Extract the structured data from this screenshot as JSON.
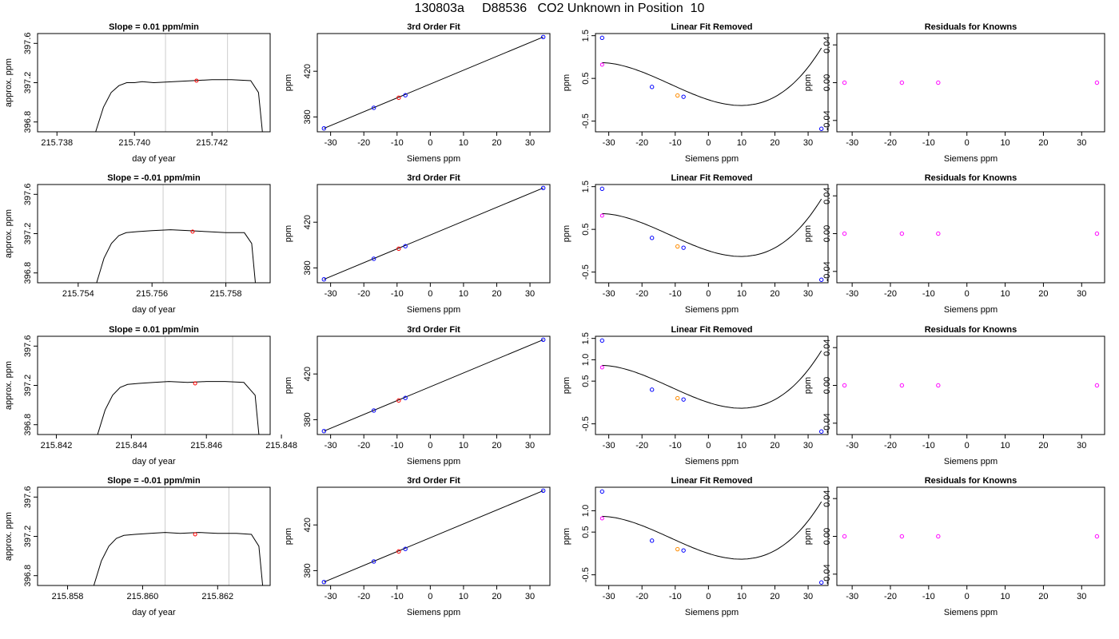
{
  "page_title": "130803a     D88536   CO2 Unknown in Position  10",
  "colors": {
    "trace": "#000000",
    "marker_time": "#cccccc",
    "known": "#0000ff",
    "unknown": "#ff0000",
    "first_point": "#ff00ff",
    "unknown_orange": "#ff8c00"
  },
  "chart_data": [
    {
      "type": "line",
      "title": "Slope =  0.01  ppm/min",
      "xlabel": "day of year",
      "ylabel": "approx. ppm",
      "xlim": [
        215.7375,
        215.7435
      ],
      "ylim": [
        396.7,
        397.7
      ],
      "xticks": [
        "215.738",
        "215.740",
        "215.742"
      ],
      "xtick_values": [
        215.738,
        215.74,
        215.742
      ],
      "yticks": [
        "396.8",
        "397.2",
        "397.6"
      ],
      "ytick_values": [
        396.8,
        397.2,
        397.6
      ],
      "series": [
        {
          "x": [
            215.739,
            215.7392,
            215.7394,
            215.7396,
            215.7398,
            215.74,
            215.7402,
            215.7405,
            215.741,
            215.7415,
            215.742,
            215.7425,
            215.743,
            215.7432,
            215.7433
          ],
          "y": [
            396.7,
            396.95,
            397.1,
            397.17,
            397.2,
            397.2,
            397.21,
            397.2,
            397.21,
            397.22,
            397.23,
            397.23,
            397.22,
            397.1,
            396.7
          ]
        }
      ],
      "vlines": [
        215.7408,
        215.7424
      ],
      "points": [
        {
          "x": 215.7416,
          "y": 397.22
        }
      ]
    },
    {
      "type": "scatter",
      "title": "3rd Order Fit",
      "xlabel": "Siemens ppm",
      "ylabel": "ppm",
      "xlim": [
        -34,
        36
      ],
      "ylim": [
        367,
        453
      ],
      "xticks": [
        "-30",
        "-20",
        "-10",
        "0",
        "10",
        "20",
        "30"
      ],
      "xtick_values": [
        -30,
        -20,
        -10,
        0,
        10,
        20,
        30
      ],
      "yticks": [
        "380",
        "420"
      ],
      "ytick_values": [
        380,
        420
      ],
      "fit_line": {
        "x": [
          -32,
          34
        ],
        "y": [
          370,
          450
        ]
      },
      "knowns": [
        {
          "x": -32,
          "y": 370
        },
        {
          "x": -17,
          "y": 388
        },
        {
          "x": -7.5,
          "y": 399
        },
        {
          "x": 34,
          "y": 450
        }
      ],
      "unknowns": [
        {
          "x": -9.5,
          "y": 396.8
        }
      ]
    },
    {
      "type": "scatter",
      "title": "Linear Fit Removed",
      "xlabel": "Siemens ppm",
      "ylabel": "ppm",
      "xlim": [
        -34,
        36
      ],
      "ylim": [
        -0.75,
        1.55
      ],
      "xticks": [
        "-30",
        "-20",
        "-10",
        "0",
        "10",
        "20",
        "30"
      ],
      "xtick_values": [
        -30,
        -20,
        -10,
        0,
        10,
        20,
        30
      ],
      "yticks": [
        "-0.5",
        "0.5",
        "1.5"
      ],
      "ytick_values": [
        -0.5,
        0.5,
        1.5
      ],
      "curve": {
        "coef": [
          0.0,
          -0.025,
          0.0009,
          2.6e-05
        ]
      },
      "knowns": [
        {
          "x": -32,
          "y": 1.45
        },
        {
          "x": -17,
          "y": 0.3
        },
        {
          "x": -7.5,
          "y": 0.07
        },
        {
          "x": 34,
          "y": -0.68
        }
      ],
      "first_point": {
        "x": -32,
        "y": 0.82
      },
      "unknowns": [
        {
          "x": -9.3,
          "y": 0.1
        }
      ]
    },
    {
      "type": "scatter",
      "title": "Residuals for Knowns",
      "xlabel": "Siemens ppm",
      "ylabel": "ppm",
      "xlim": [
        -34,
        36
      ],
      "ylim": [
        -0.052,
        0.052
      ],
      "xticks": [
        "-30",
        "-20",
        "-10",
        "0",
        "10",
        "20",
        "30"
      ],
      "xtick_values": [
        -30,
        -20,
        -10,
        0,
        10,
        20,
        30
      ],
      "yticks": [
        "-0.04",
        "0.00",
        "0.04"
      ],
      "ytick_values": [
        -0.04,
        0.0,
        0.04
      ],
      "knowns": [
        {
          "x": -32,
          "y": 0.0
        },
        {
          "x": -17,
          "y": 0.0
        },
        {
          "x": -7.5,
          "y": 0.0
        },
        {
          "x": 34,
          "y": 0.0
        }
      ]
    },
    {
      "type": "line",
      "title": "Slope =  -0.01  ppm/min",
      "xlabel": "day of year",
      "ylabel": "approx. ppm",
      "xlim": [
        215.7529,
        215.7592
      ],
      "ylim": [
        396.7,
        397.7
      ],
      "xticks": [
        "215.754",
        "215.756",
        "215.758"
      ],
      "xtick_values": [
        215.754,
        215.756,
        215.758
      ],
      "yticks": [
        "396.8",
        "397.2",
        "397.6"
      ],
      "ytick_values": [
        396.8,
        397.2,
        397.6
      ],
      "series": [
        {
          "x": [
            215.7545,
            215.7547,
            215.7549,
            215.7551,
            215.7553,
            215.7556,
            215.756,
            215.7565,
            215.757,
            215.7575,
            215.758,
            215.7585,
            215.7587,
            215.7588
          ],
          "y": [
            396.7,
            396.95,
            397.1,
            397.18,
            397.21,
            397.22,
            397.23,
            397.24,
            397.23,
            397.22,
            397.21,
            397.21,
            397.1,
            396.7
          ]
        }
      ],
      "vlines": [
        215.7563,
        215.758
      ],
      "points": [
        {
          "x": 215.7571,
          "y": 397.22
        }
      ]
    },
    {
      "type": "scatter",
      "title": "3rd Order Fit",
      "xlabel": "Siemens ppm",
      "ylabel": "ppm",
      "xlim": [
        -34,
        36
      ],
      "ylim": [
        367,
        453
      ],
      "xticks": [
        "-30",
        "-20",
        "-10",
        "0",
        "10",
        "20",
        "30"
      ],
      "xtick_values": [
        -30,
        -20,
        -10,
        0,
        10,
        20,
        30
      ],
      "yticks": [
        "380",
        "420"
      ],
      "ytick_values": [
        380,
        420
      ],
      "fit_line": {
        "x": [
          -32,
          34
        ],
        "y": [
          370,
          450
        ]
      },
      "knowns": [
        {
          "x": -32,
          "y": 370
        },
        {
          "x": -17,
          "y": 388
        },
        {
          "x": -7.5,
          "y": 399
        },
        {
          "x": 34,
          "y": 450
        }
      ],
      "unknowns": [
        {
          "x": -9.5,
          "y": 396.8
        }
      ]
    },
    {
      "type": "scatter",
      "title": "Linear Fit Removed",
      "xlabel": "Siemens ppm",
      "ylabel": "ppm",
      "xlim": [
        -34,
        36
      ],
      "ylim": [
        -0.75,
        1.55
      ],
      "xticks": [
        "-30",
        "-20",
        "-10",
        "0",
        "10",
        "20",
        "30"
      ],
      "xtick_values": [
        -30,
        -20,
        -10,
        0,
        10,
        20,
        30
      ],
      "yticks": [
        "-0.5",
        "0.5",
        "1.5"
      ],
      "ytick_values": [
        -0.5,
        0.5,
        1.5
      ],
      "curve": {
        "coef": [
          0.0,
          -0.025,
          0.0009,
          2.6e-05
        ]
      },
      "knowns": [
        {
          "x": -32,
          "y": 1.45
        },
        {
          "x": -17,
          "y": 0.3
        },
        {
          "x": -7.5,
          "y": 0.07
        },
        {
          "x": 34,
          "y": -0.68
        }
      ],
      "first_point": {
        "x": -32,
        "y": 0.82
      },
      "unknowns": [
        {
          "x": -9.3,
          "y": 0.1
        }
      ]
    },
    {
      "type": "scatter",
      "title": "Residuals for Knowns",
      "xlabel": "Siemens ppm",
      "ylabel": "ppm",
      "xlim": [
        -34,
        36
      ],
      "ylim": [
        -0.052,
        0.052
      ],
      "xticks": [
        "-30",
        "-20",
        "-10",
        "0",
        "10",
        "20",
        "30"
      ],
      "xtick_values": [
        -30,
        -20,
        -10,
        0,
        10,
        20,
        30
      ],
      "yticks": [
        "-0.04",
        "0.00",
        "0.04"
      ],
      "ytick_values": [
        -0.04,
        0.0,
        0.04
      ],
      "knowns": [
        {
          "x": -32,
          "y": 0.0
        },
        {
          "x": -17,
          "y": 0.0
        },
        {
          "x": -7.5,
          "y": 0.0
        },
        {
          "x": 34,
          "y": 0.0
        }
      ]
    },
    {
      "type": "line",
      "title": "Slope =  0.01  ppm/min",
      "xlabel": "day of year",
      "ylabel": "approx. ppm",
      "xlim": [
        215.8415,
        215.8477
      ],
      "ylim": [
        396.7,
        397.7
      ],
      "xticks": [
        "215.842",
        "215.844",
        "215.846",
        "215.848"
      ],
      "xtick_values": [
        215.842,
        215.844,
        215.846,
        215.848
      ],
      "yticks": [
        "396.8",
        "397.2",
        "397.6"
      ],
      "ytick_values": [
        396.8,
        397.2,
        397.6
      ],
      "series": [
        {
          "x": [
            215.8431,
            215.8433,
            215.8435,
            215.8437,
            215.8439,
            215.8442,
            215.8446,
            215.845,
            215.8455,
            215.846,
            215.8465,
            215.847,
            215.8473,
            215.8474
          ],
          "y": [
            396.7,
            396.95,
            397.1,
            397.18,
            397.21,
            397.22,
            397.23,
            397.24,
            397.23,
            397.24,
            397.24,
            397.23,
            397.1,
            396.7
          ]
        }
      ],
      "vlines": [
        215.8449,
        215.8467
      ],
      "points": [
        {
          "x": 215.8457,
          "y": 397.22
        }
      ]
    },
    {
      "type": "scatter",
      "title": "3rd Order Fit",
      "xlabel": "Siemens ppm",
      "ylabel": "ppm",
      "xlim": [
        -34,
        36
      ],
      "ylim": [
        367,
        453
      ],
      "xticks": [
        "-30",
        "-20",
        "-10",
        "0",
        "10",
        "20",
        "30"
      ],
      "xtick_values": [
        -30,
        -20,
        -10,
        0,
        10,
        20,
        30
      ],
      "yticks": [
        "380",
        "420"
      ],
      "ytick_values": [
        380,
        420
      ],
      "fit_line": {
        "x": [
          -32,
          34
        ],
        "y": [
          370,
          450
        ]
      },
      "knowns": [
        {
          "x": -32,
          "y": 370
        },
        {
          "x": -17,
          "y": 388
        },
        {
          "x": -7.5,
          "y": 399
        },
        {
          "x": 34,
          "y": 450
        }
      ],
      "unknowns": [
        {
          "x": -9.5,
          "y": 396.8
        }
      ]
    },
    {
      "type": "scatter",
      "title": "Linear Fit Removed",
      "xlabel": "Siemens ppm",
      "ylabel": "ppm",
      "xlim": [
        -34,
        36
      ],
      "ylim": [
        -0.75,
        1.55
      ],
      "xticks": [
        "-30",
        "-20",
        "-10",
        "0",
        "10",
        "20",
        "30"
      ],
      "xtick_values": [
        -30,
        -20,
        -10,
        0,
        10,
        20,
        30
      ],
      "yticks": [
        "-0.5",
        "0.5",
        "1.0",
        "1.5"
      ],
      "ytick_values": [
        -0.5,
        0.5,
        1.0,
        1.5
      ],
      "curve": {
        "coef": [
          0.0,
          -0.025,
          0.0009,
          2.6e-05
        ]
      },
      "knowns": [
        {
          "x": -32,
          "y": 1.45
        },
        {
          "x": -17,
          "y": 0.3
        },
        {
          "x": -7.5,
          "y": 0.07
        },
        {
          "x": 34,
          "y": -0.68
        }
      ],
      "first_point": {
        "x": -32,
        "y": 0.82
      },
      "unknowns": [
        {
          "x": -9.3,
          "y": 0.1
        }
      ]
    },
    {
      "type": "scatter",
      "title": "Residuals for Knowns",
      "xlabel": "Siemens ppm",
      "ylabel": "ppm",
      "xlim": [
        -34,
        36
      ],
      "ylim": [
        -0.052,
        0.052
      ],
      "xticks": [
        "-30",
        "-20",
        "-10",
        "0",
        "10",
        "20",
        "30"
      ],
      "xtick_values": [
        -30,
        -20,
        -10,
        0,
        10,
        20,
        30
      ],
      "yticks": [
        "-0.04",
        "0.00",
        "0.04"
      ],
      "ytick_values": [
        -0.04,
        0.0,
        0.04
      ],
      "knowns": [
        {
          "x": -32,
          "y": 0.0
        },
        {
          "x": -17,
          "y": 0.0
        },
        {
          "x": -7.5,
          "y": 0.0
        },
        {
          "x": 34,
          "y": 0.0
        }
      ]
    },
    {
      "type": "line",
      "title": "Slope =  -0.01  ppm/min",
      "xlabel": "day of year",
      "ylabel": "approx. ppm",
      "xlim": [
        215.8572,
        215.8634
      ],
      "ylim": [
        396.7,
        397.7
      ],
      "xticks": [
        "215.858",
        "215.860",
        "215.862"
      ],
      "xtick_values": [
        215.858,
        215.86,
        215.862
      ],
      "yticks": [
        "396.8",
        "397.2",
        "397.6"
      ],
      "ytick_values": [
        396.8,
        397.2,
        397.6
      ],
      "series": [
        {
          "x": [
            215.8587,
            215.8589,
            215.8591,
            215.8593,
            215.8595,
            215.8598,
            215.8602,
            215.8606,
            215.861,
            215.8615,
            215.862,
            215.8625,
            215.8629,
            215.8631,
            215.8632
          ],
          "y": [
            396.7,
            396.95,
            397.1,
            397.18,
            397.21,
            397.22,
            397.23,
            397.24,
            397.23,
            397.24,
            397.23,
            397.23,
            397.22,
            397.1,
            396.7
          ]
        }
      ],
      "vlines": [
        215.8606,
        215.8623
      ],
      "points": [
        {
          "x": 215.8614,
          "y": 397.22
        }
      ]
    },
    {
      "type": "scatter",
      "title": "3rd Order Fit",
      "xlabel": "Siemens ppm",
      "ylabel": "ppm",
      "xlim": [
        -34,
        36
      ],
      "ylim": [
        367,
        453
      ],
      "xticks": [
        "-30",
        "-20",
        "-10",
        "0",
        "10",
        "20",
        "30"
      ],
      "xtick_values": [
        -30,
        -20,
        -10,
        0,
        10,
        20,
        30
      ],
      "yticks": [
        "380",
        "420"
      ],
      "ytick_values": [
        380,
        420
      ],
      "fit_line": {
        "x": [
          -32,
          34
        ],
        "y": [
          370,
          450
        ]
      },
      "knowns": [
        {
          "x": -32,
          "y": 370
        },
        {
          "x": -17,
          "y": 388
        },
        {
          "x": -7.5,
          "y": 399
        },
        {
          "x": 34,
          "y": 450
        }
      ],
      "unknowns": [
        {
          "x": -9.5,
          "y": 396.8
        }
      ]
    },
    {
      "type": "scatter",
      "title": "Linear Fit Removed",
      "xlabel": "Siemens ppm",
      "ylabel": "ppm",
      "xlim": [
        -34,
        36
      ],
      "ylim": [
        -0.75,
        1.55
      ],
      "xticks": [
        "-30",
        "-20",
        "-10",
        "0",
        "10",
        "20",
        "30"
      ],
      "xtick_values": [
        -30,
        -20,
        -10,
        0,
        10,
        20,
        30
      ],
      "yticks": [
        "-0.5",
        "0.5",
        "1.0"
      ],
      "ytick_values": [
        -0.5,
        0.5,
        1.0
      ],
      "curve": {
        "coef": [
          0.0,
          -0.025,
          0.0009,
          2.6e-05
        ]
      },
      "knowns": [
        {
          "x": -32,
          "y": 1.45
        },
        {
          "x": -17,
          "y": 0.3
        },
        {
          "x": -7.5,
          "y": 0.07
        },
        {
          "x": 34,
          "y": -0.68
        }
      ],
      "first_point": {
        "x": -32,
        "y": 0.82
      },
      "unknowns": [
        {
          "x": -9.3,
          "y": 0.1
        }
      ]
    },
    {
      "type": "scatter",
      "title": "Residuals for Knowns",
      "xlabel": "Siemens ppm",
      "ylabel": "ppm",
      "xlim": [
        -34,
        36
      ],
      "ylim": [
        -0.052,
        0.052
      ],
      "xticks": [
        "-30",
        "-20",
        "-10",
        "0",
        "10",
        "20",
        "30"
      ],
      "xtick_values": [
        -30,
        -20,
        -10,
        0,
        10,
        20,
        30
      ],
      "yticks": [
        "-0.04",
        "0.00",
        "0.04"
      ],
      "ytick_values": [
        -0.04,
        0.0,
        0.04
      ],
      "knowns": [
        {
          "x": -32,
          "y": 0.0
        },
        {
          "x": -17,
          "y": 0.0
        },
        {
          "x": -7.5,
          "y": 0.0
        },
        {
          "x": 34,
          "y": 0.0
        }
      ]
    }
  ]
}
